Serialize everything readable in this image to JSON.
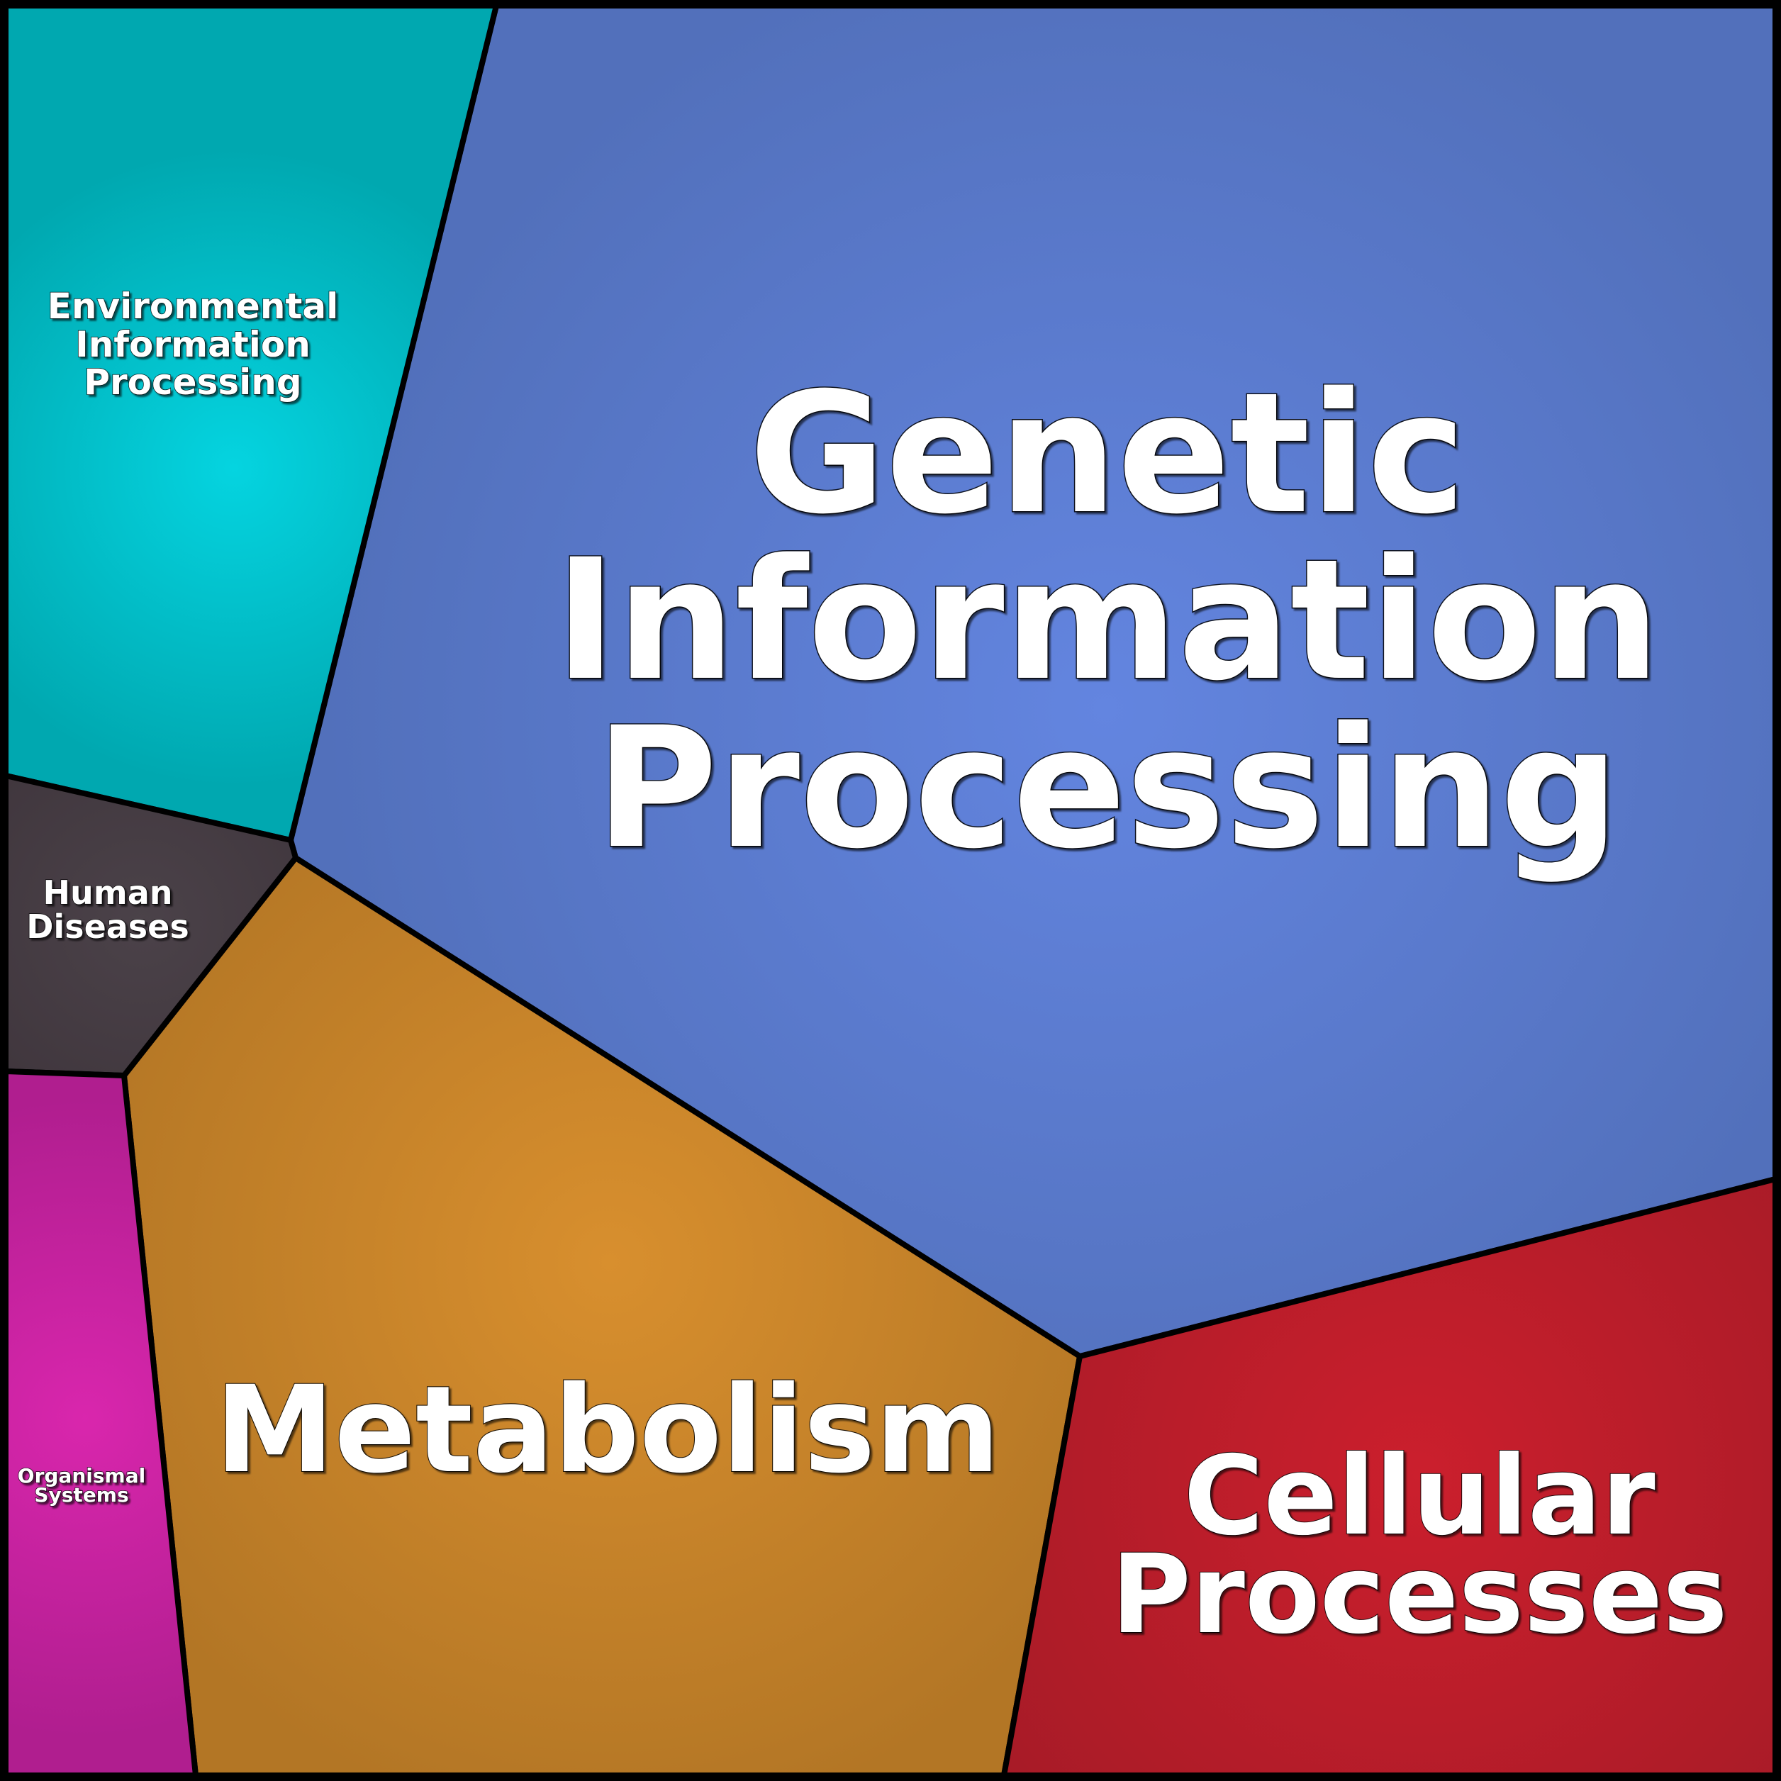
{
  "chart_data": {
    "type": "voronoi-treemap",
    "title": "",
    "cells": [
      {
        "id": "genetic",
        "label_lines": [
          "Genetic",
          "Information",
          "Processing"
        ],
        "color_center": "#6385e0",
        "color_edge": "#5270bb"
      },
      {
        "id": "metabolism",
        "label_lines": [
          "Metabolism"
        ],
        "color_center": "#d88f2e",
        "color_edge": "#b37625"
      },
      {
        "id": "cellular",
        "label_lines": [
          "Cellular",
          "Processes"
        ],
        "color_center": "#cb1f2d",
        "color_edge": "#a81b27"
      },
      {
        "id": "environmental",
        "label_lines": [
          "Environmental",
          "Information",
          "Processing"
        ],
        "color_center": "#05d4e0",
        "color_edge": "#00a8b0"
      },
      {
        "id": "human",
        "label_lines": [
          "Human",
          "Diseases"
        ],
        "color_center": "#4b4249",
        "color_edge": "#3a3037"
      },
      {
        "id": "organismal",
        "label_lines": [
          "Organismal",
          "Systems"
        ],
        "color_center": "#d926ad",
        "color_edge": "#b01e8f"
      }
    ]
  }
}
